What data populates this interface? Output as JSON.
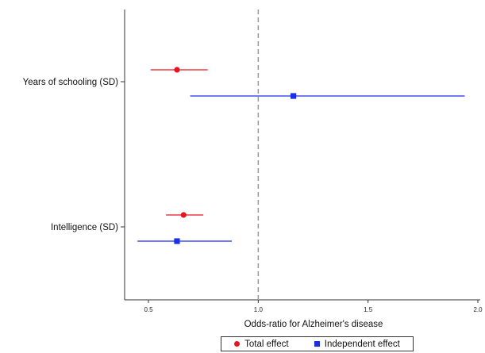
{
  "chart_data": {
    "type": "forest",
    "title": "",
    "xlabel": "Odds-ratio for Alzheimer's disease",
    "ylabel": "",
    "xlim": [
      0.4,
      2.0
    ],
    "xticks": [
      0.5,
      1.0,
      1.5,
      2.0
    ],
    "xtick_labels": [
      "0.5",
      "1.0",
      "1.5",
      "2.0"
    ],
    "reference_line": 1.0,
    "categories": [
      "Years of schooling (SD)",
      "Intelligence (SD)"
    ],
    "series": [
      {
        "name": "Total effect",
        "color": "#e8141d",
        "marker": "circle",
        "points": [
          {
            "category": "Years of schooling (SD)",
            "estimate": 0.63,
            "lower": 0.51,
            "upper": 0.77
          },
          {
            "category": "Intelligence (SD)",
            "estimate": 0.66,
            "lower": 0.58,
            "upper": 0.75
          }
        ]
      },
      {
        "name": "Independent effect",
        "color": "#1c2fe8",
        "marker": "square",
        "points": [
          {
            "category": "Years of schooling (SD)",
            "estimate": 1.16,
            "lower": 0.69,
            "upper": 1.94
          },
          {
            "category": "Intelligence (SD)",
            "estimate": 0.63,
            "lower": 0.45,
            "upper": 0.88
          }
        ]
      }
    ],
    "legend_position": "bottom",
    "grid": false
  }
}
